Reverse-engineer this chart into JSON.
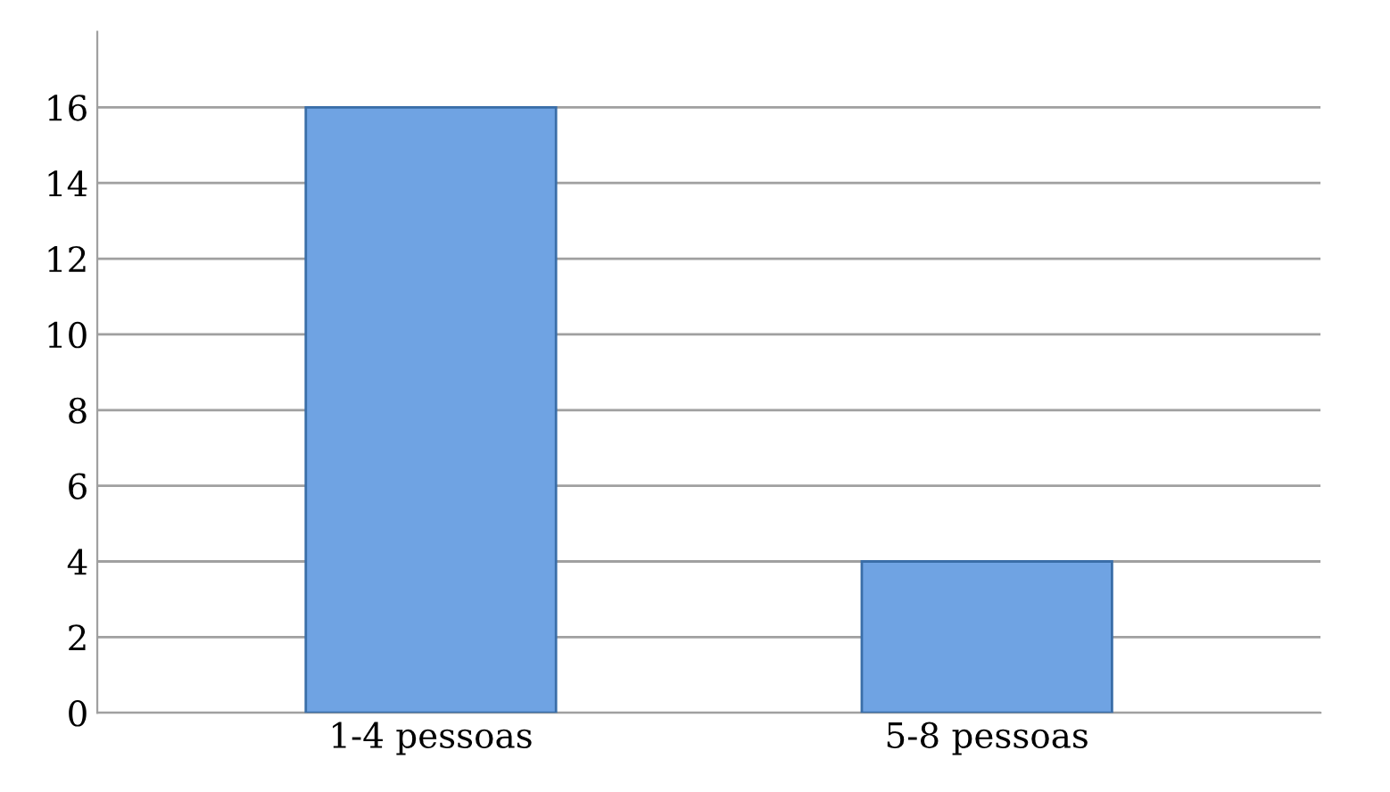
{
  "chart_data": {
    "type": "bar",
    "categories": [
      "1-4 pessoas",
      "5-8 pessoas"
    ],
    "values": [
      16,
      4
    ],
    "color": "#6fa3e3",
    "ylim": [
      0,
      18
    ],
    "yticks": [
      0,
      2,
      4,
      6,
      8,
      10,
      12,
      14,
      16
    ],
    "grid": "y"
  }
}
